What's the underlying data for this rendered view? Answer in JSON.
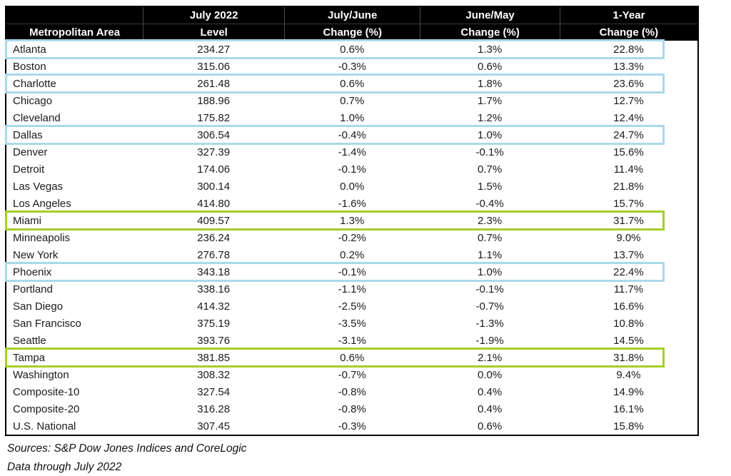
{
  "table": {
    "columns": [
      {
        "line1": "",
        "line2": "Metropolitan Area"
      },
      {
        "line1": "July 2022",
        "line2": "Level"
      },
      {
        "line1": "July/June",
        "line2": "Change (%)"
      },
      {
        "line1": "June/May",
        "line2": "Change (%)"
      },
      {
        "line1": "1-Year",
        "line2": "Change (%)"
      }
    ],
    "rows": [
      {
        "area": "Atlanta",
        "level": "234.27",
        "july_june": "0.6%",
        "june_may": "1.3%",
        "one_year": "22.8%",
        "highlight": "blue"
      },
      {
        "area": "Boston",
        "level": "315.06",
        "july_june": "-0.3%",
        "june_may": "0.6%",
        "one_year": "13.3%",
        "highlight": null
      },
      {
        "area": "Charlotte",
        "level": "261.48",
        "july_june": "0.6%",
        "june_may": "1.8%",
        "one_year": "23.6%",
        "highlight": "blue"
      },
      {
        "area": "Chicago",
        "level": "188.96",
        "july_june": "0.7%",
        "june_may": "1.7%",
        "one_year": "12.7%",
        "highlight": null
      },
      {
        "area": "Cleveland",
        "level": "175.82",
        "july_june": "1.0%",
        "june_may": "1.2%",
        "one_year": "12.4%",
        "highlight": null
      },
      {
        "area": "Dallas",
        "level": "306.54",
        "july_june": "-0.4%",
        "june_may": "1.0%",
        "one_year": "24.7%",
        "highlight": "blue"
      },
      {
        "area": "Denver",
        "level": "327.39",
        "july_june": "-1.4%",
        "june_may": "-0.1%",
        "one_year": "15.6%",
        "highlight": null
      },
      {
        "area": "Detroit",
        "level": "174.06",
        "july_june": "-0.1%",
        "june_may": "0.7%",
        "one_year": "11.4%",
        "highlight": null
      },
      {
        "area": "Las Vegas",
        "level": "300.14",
        "july_june": "0.0%",
        "june_may": "1.5%",
        "one_year": "21.8%",
        "highlight": null
      },
      {
        "area": "Los Angeles",
        "level": "414.80",
        "july_june": "-1.6%",
        "june_may": "-0.4%",
        "one_year": "15.7%",
        "highlight": null
      },
      {
        "area": "Miami",
        "level": "409.57",
        "july_june": "1.3%",
        "june_may": "2.3%",
        "one_year": "31.7%",
        "highlight": "green"
      },
      {
        "area": "Minneapolis",
        "level": "236.24",
        "july_june": "-0.2%",
        "june_may": "0.7%",
        "one_year": "9.0%",
        "highlight": null
      },
      {
        "area": "New York",
        "level": "276.78",
        "july_june": "0.2%",
        "june_may": "1.1%",
        "one_year": "13.7%",
        "highlight": null
      },
      {
        "area": "Phoenix",
        "level": "343.18",
        "july_june": "-0.1%",
        "june_may": "1.0%",
        "one_year": "22.4%",
        "highlight": "blue"
      },
      {
        "area": "Portland",
        "level": "338.16",
        "july_june": "-1.1%",
        "june_may": "-0.1%",
        "one_year": "11.7%",
        "highlight": null
      },
      {
        "area": "San Diego",
        "level": "414.32",
        "july_june": "-2.5%",
        "june_may": "-0.7%",
        "one_year": "16.6%",
        "highlight": null
      },
      {
        "area": "San Francisco",
        "level": "375.19",
        "july_june": "-3.5%",
        "june_may": "-1.3%",
        "one_year": "10.8%",
        "highlight": null
      },
      {
        "area": "Seattle",
        "level": "393.76",
        "july_june": "-3.1%",
        "june_may": "-1.9%",
        "one_year": "14.5%",
        "highlight": null
      },
      {
        "area": "Tampa",
        "level": "381.85",
        "july_june": "0.6%",
        "june_may": "2.1%",
        "one_year": "31.8%",
        "highlight": "green"
      },
      {
        "area": "Washington",
        "level": "308.32",
        "july_june": "-0.7%",
        "june_may": "0.0%",
        "one_year": "9.4%",
        "highlight": null
      },
      {
        "area": "Composite-10",
        "level": "327.54",
        "july_june": "-0.8%",
        "june_may": "0.4%",
        "one_year": "14.9%",
        "highlight": null
      },
      {
        "area": "Composite-20",
        "level": "316.28",
        "july_june": "-0.8%",
        "june_may": "0.4%",
        "one_year": "16.1%",
        "highlight": null
      },
      {
        "area": "U.S. National",
        "level": "307.45",
        "july_june": "-0.3%",
        "june_may": "0.6%",
        "one_year": "15.8%",
        "highlight": null
      }
    ]
  },
  "colors": {
    "header_bg": "#000000",
    "header_text": "#ffffff",
    "highlight_blue": "#a9d9e9",
    "highlight_green": "#a3cf27"
  },
  "footer": {
    "sources": "Sources: S&P Dow Jones Indices and CoreLogic",
    "data_through": "Data through July 2022"
  },
  "chart_data": {
    "type": "table",
    "title": "Metropolitan area home price index levels and changes, July 2022",
    "columns": [
      "Metropolitan Area",
      "July 2022 Level",
      "July/June Change (%)",
      "June/May Change (%)",
      "1-Year Change (%)"
    ],
    "rows": [
      [
        "Atlanta",
        234.27,
        0.6,
        1.3,
        22.8
      ],
      [
        "Boston",
        315.06,
        -0.3,
        0.6,
        13.3
      ],
      [
        "Charlotte",
        261.48,
        0.6,
        1.8,
        23.6
      ],
      [
        "Chicago",
        188.96,
        0.7,
        1.7,
        12.7
      ],
      [
        "Cleveland",
        175.82,
        1.0,
        1.2,
        12.4
      ],
      [
        "Dallas",
        306.54,
        -0.4,
        1.0,
        24.7
      ],
      [
        "Denver",
        327.39,
        -1.4,
        -0.1,
        15.6
      ],
      [
        "Detroit",
        174.06,
        -0.1,
        0.7,
        11.4
      ],
      [
        "Las Vegas",
        300.14,
        0.0,
        1.5,
        21.8
      ],
      [
        "Los Angeles",
        414.8,
        -1.6,
        -0.4,
        15.7
      ],
      [
        "Miami",
        409.57,
        1.3,
        2.3,
        31.7
      ],
      [
        "Minneapolis",
        236.24,
        -0.2,
        0.7,
        9.0
      ],
      [
        "New York",
        276.78,
        0.2,
        1.1,
        13.7
      ],
      [
        "Phoenix",
        343.18,
        -0.1,
        1.0,
        22.4
      ],
      [
        "Portland",
        338.16,
        -1.1,
        -0.1,
        11.7
      ],
      [
        "San Diego",
        414.32,
        -2.5,
        -0.7,
        16.6
      ],
      [
        "San Francisco",
        375.19,
        -3.5,
        -1.3,
        10.8
      ],
      [
        "Seattle",
        393.76,
        -3.1,
        -1.9,
        14.5
      ],
      [
        "Tampa",
        381.85,
        0.6,
        2.1,
        31.8
      ],
      [
        "Washington",
        308.32,
        -0.7,
        0.0,
        9.4
      ],
      [
        "Composite-10",
        327.54,
        -0.8,
        0.4,
        14.9
      ],
      [
        "Composite-20",
        316.28,
        -0.8,
        0.4,
        16.1
      ],
      [
        "U.S. National",
        307.45,
        -0.3,
        0.6,
        15.8
      ]
    ],
    "highlighted_rows": {
      "blue": [
        "Atlanta",
        "Charlotte",
        "Dallas",
        "Phoenix"
      ],
      "green": [
        "Miami",
        "Tampa"
      ]
    },
    "notes": [
      "Sources: S&P Dow Jones Indices and CoreLogic",
      "Data through July 2022"
    ]
  }
}
